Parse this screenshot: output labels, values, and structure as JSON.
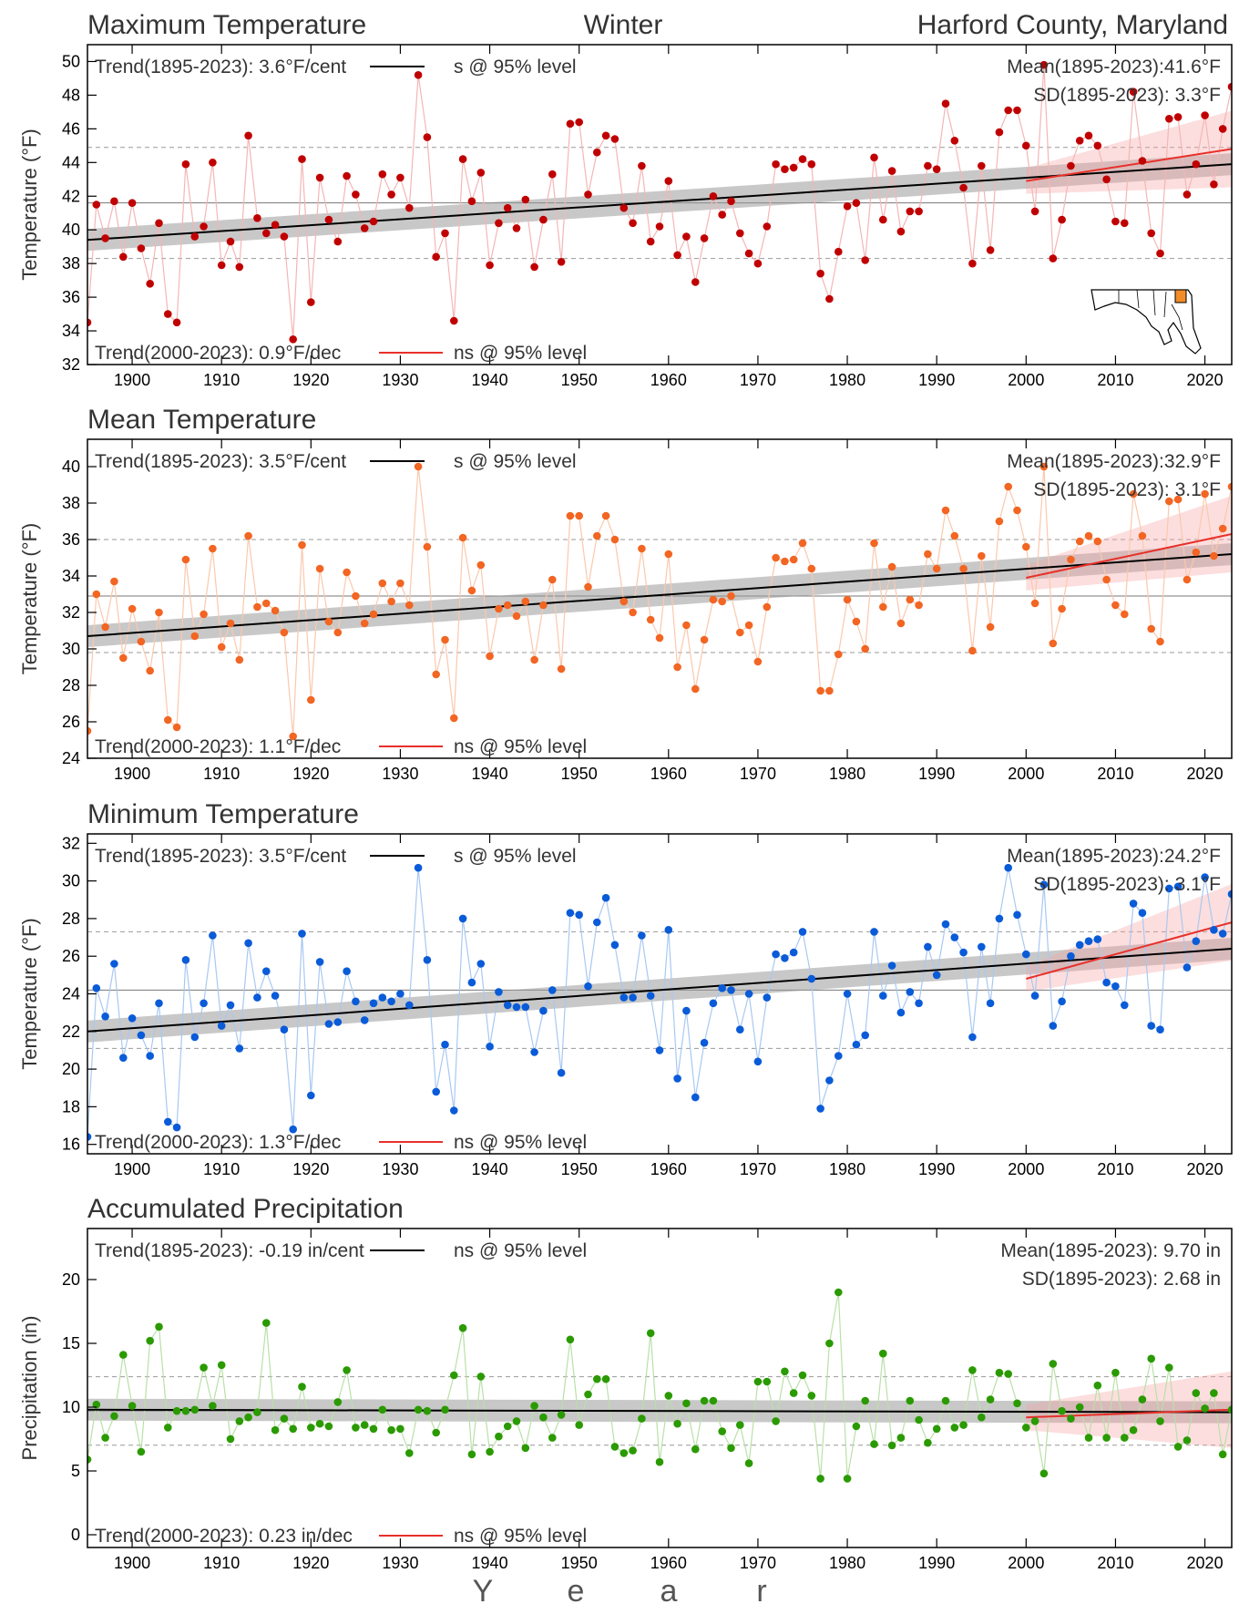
{
  "header": {
    "region_label": "Winter",
    "location_label": "Harford County, Maryland"
  },
  "xaxis": {
    "label_letters": [
      "Y",
      "e",
      "a",
      "r"
    ],
    "ticks": [
      1900,
      1910,
      1920,
      1930,
      1940,
      1950,
      1960,
      1970,
      1980,
      1990,
      2000,
      2010,
      2020
    ],
    "range": [
      1895,
      2023
    ]
  },
  "map_inset": {
    "icon": "maryland-map-icon",
    "highlight_color": "#f28c28"
  },
  "chart_data": [
    {
      "type": "scatter",
      "title": "Maximum Temperature",
      "ylabel": "Temperature (°F)",
      "ylim": [
        32,
        51
      ],
      "yticks": [
        32,
        34,
        36,
        38,
        40,
        42,
        44,
        46,
        48,
        50
      ],
      "point_color": "#c00000",
      "line_color": "#f4b6b6",
      "trend_long_text": "Trend(1895-2023):  3.6°F/cent",
      "trend_long_sig": "s @ 95% level",
      "trend_recent_text": "Trend(2000-2023):  0.9°F/dec",
      "trend_recent_sig": "ns @ 95% level",
      "mean_text": "Mean(1895-2023):41.6°F",
      "sd_text": "SD(1895-2023): 3.3°F",
      "mean": 41.6,
      "sd": 3.3,
      "trend_long": [
        39.4,
        43.9
      ],
      "trend_recent": [
        42.9,
        44.8
      ],
      "x_start": 1895,
      "values": [
        34.5,
        41.5,
        39.5,
        41.7,
        38.4,
        41.6,
        38.9,
        36.8,
        40.4,
        35.0,
        34.5,
        43.9,
        39.6,
        40.2,
        44.0,
        37.9,
        39.3,
        37.8,
        45.6,
        40.7,
        39.8,
        40.3,
        39.6,
        33.5,
        44.2,
        35.7,
        43.1,
        40.6,
        39.3,
        43.2,
        42.1,
        40.1,
        40.5,
        43.3,
        42.1,
        43.1,
        41.3,
        49.2,
        45.5,
        38.4,
        39.8,
        34.6,
        44.2,
        41.7,
        43.4,
        37.9,
        40.4,
        41.3,
        40.1,
        41.8,
        37.8,
        40.6,
        43.3,
        38.1,
        46.3,
        46.4,
        42.1,
        44.6,
        45.6,
        45.4,
        41.3,
        40.4,
        43.8,
        39.3,
        40.2,
        42.9,
        38.5,
        39.6,
        36.9,
        39.5,
        42.0,
        40.9,
        41.7,
        39.8,
        38.6,
        38.0,
        40.2,
        43.9,
        43.6,
        43.7,
        44.2,
        43.9,
        37.4,
        35.9,
        38.7,
        41.4,
        41.6,
        38.2,
        44.3,
        40.6,
        43.5,
        39.9,
        41.1,
        41.1,
        43.8,
        43.6,
        47.5,
        45.3,
        42.5,
        38.0,
        43.8,
        38.8,
        45.8,
        47.1,
        47.1,
        45.0,
        41.1,
        49.8,
        38.3,
        40.6,
        43.8,
        45.3,
        45.6,
        45.0,
        43.0,
        40.5,
        40.4,
        48.2,
        44.1,
        39.8,
        38.6,
        46.6,
        46.7,
        42.1,
        43.9,
        46.8,
        42.7,
        46.0,
        48.5
      ]
    },
    {
      "type": "scatter",
      "title": "Mean Temperature",
      "ylabel": "Temperature (°F)",
      "ylim": [
        24,
        41.5
      ],
      "yticks": [
        24,
        26,
        28,
        30,
        32,
        34,
        36,
        38,
        40
      ],
      "point_color": "#f26522",
      "line_color": "#fbc8ad",
      "trend_long_text": "Trend(1895-2023):  3.5°F/cent",
      "trend_long_sig": "s @ 95% level",
      "trend_recent_text": "Trend(2000-2023):  1.1°F/dec",
      "trend_recent_sig": "ns @ 95% level",
      "mean_text": "Mean(1895-2023):32.9°F",
      "sd_text": "SD(1895-2023): 3.1°F",
      "mean": 32.9,
      "sd": 3.1,
      "trend_long": [
        30.7,
        35.2
      ],
      "trend_recent": [
        33.9,
        36.3
      ],
      "x_start": 1895,
      "values": [
        25.5,
        33.0,
        31.2,
        33.7,
        29.5,
        32.2,
        30.4,
        28.8,
        32.0,
        26.1,
        25.7,
        34.9,
        30.7,
        31.9,
        35.5,
        30.1,
        31.4,
        29.4,
        36.2,
        32.3,
        32.5,
        32.1,
        30.9,
        25.2,
        35.7,
        27.2,
        34.4,
        31.5,
        30.9,
        34.2,
        32.9,
        31.4,
        31.9,
        33.6,
        32.6,
        33.6,
        32.4,
        40.0,
        35.6,
        28.6,
        30.5,
        26.2,
        36.1,
        33.2,
        34.6,
        29.6,
        32.2,
        32.4,
        31.8,
        32.6,
        29.4,
        32.4,
        33.8,
        28.9,
        37.3,
        37.3,
        33.4,
        36.2,
        37.3,
        36.0,
        32.6,
        32.0,
        35.5,
        31.6,
        30.6,
        35.2,
        29.0,
        31.3,
        27.8,
        30.5,
        32.7,
        32.6,
        32.9,
        30.9,
        31.3,
        29.3,
        32.3,
        35.0,
        34.8,
        34.9,
        35.8,
        34.4,
        27.7,
        27.7,
        29.7,
        32.7,
        31.5,
        30.0,
        35.8,
        32.3,
        34.5,
        31.4,
        32.7,
        32.4,
        35.2,
        34.4,
        37.6,
        36.2,
        34.4,
        29.9,
        35.1,
        31.2,
        37.0,
        38.9,
        37.6,
        35.6,
        32.5,
        40.0,
        30.3,
        32.2,
        34.9,
        35.9,
        36.2,
        35.9,
        33.8,
        32.4,
        31.9,
        38.5,
        36.2,
        31.1,
        30.4,
        38.1,
        38.2,
        33.8,
        35.3,
        38.5,
        35.1,
        36.6,
        38.9
      ]
    },
    {
      "type": "scatter",
      "title": "Minimum Temperature",
      "ylabel": "Temperature (°F)",
      "ylim": [
        15.5,
        32.5
      ],
      "yticks": [
        16,
        18,
        20,
        22,
        24,
        26,
        28,
        30,
        32
      ],
      "point_color": "#0a5bd8",
      "line_color": "#a9c8f2",
      "trend_long_text": "Trend(1895-2023):  3.5°F/cent",
      "trend_long_sig": "s @ 95% level",
      "trend_recent_text": "Trend(2000-2023):  1.3°F/dec",
      "trend_recent_sig": "ns @ 95% level",
      "mean_text": "Mean(1895-2023):24.2°F",
      "sd_text": "SD(1895-2023): 3.1°F",
      "mean": 24.2,
      "sd": 3.1,
      "trend_long": [
        22.0,
        26.4
      ],
      "trend_recent": [
        24.8,
        27.8
      ],
      "x_start": 1895,
      "values": [
        16.4,
        24.3,
        22.8,
        25.6,
        20.6,
        22.7,
        21.8,
        20.7,
        23.5,
        17.2,
        16.9,
        25.8,
        21.7,
        23.5,
        27.1,
        22.3,
        23.4,
        21.1,
        26.7,
        23.8,
        25.2,
        23.9,
        22.1,
        16.8,
        27.2,
        18.6,
        25.7,
        22.4,
        22.5,
        25.2,
        23.6,
        22.6,
        23.5,
        23.8,
        23.6,
        24.0,
        23.4,
        30.7,
        25.8,
        18.8,
        21.3,
        17.8,
        28.0,
        24.6,
        25.6,
        21.2,
        24.1,
        23.4,
        23.3,
        23.3,
        20.9,
        23.1,
        24.2,
        19.8,
        28.3,
        28.2,
        24.4,
        27.8,
        29.1,
        26.6,
        23.8,
        23.8,
        27.1,
        23.9,
        21.0,
        27.4,
        19.5,
        23.1,
        18.5,
        21.4,
        23.5,
        24.3,
        24.2,
        22.1,
        24.0,
        20.4,
        23.8,
        26.1,
        25.9,
        26.2,
        27.3,
        24.8,
        17.9,
        19.4,
        20.7,
        24.0,
        21.3,
        21.8,
        27.3,
        23.9,
        25.5,
        23.0,
        24.1,
        23.5,
        26.5,
        25.0,
        27.7,
        27.0,
        26.2,
        21.7,
        26.5,
        23.5,
        28.0,
        30.7,
        28.2,
        26.1,
        23.9,
        29.8,
        22.3,
        23.6,
        26.0,
        26.6,
        26.8,
        26.9,
        24.6,
        24.4,
        23.4,
        28.8,
        28.3,
        22.3,
        22.1,
        29.6,
        29.7,
        25.4,
        26.8,
        30.2,
        27.4,
        27.2,
        29.3
      ]
    },
    {
      "type": "scatter",
      "title": "Accumulated Precipitation",
      "ylabel": "Precipitation (in)",
      "ylim": [
        -1,
        24
      ],
      "yticks": [
        0,
        5,
        10,
        15,
        20
      ],
      "point_color": "#2a9a00",
      "line_color": "#b9e0a8",
      "trend_long_text": "Trend(1895-2023): -0.19 in/cent",
      "trend_long_sig": "ns @ 95% level",
      "trend_recent_text": "Trend(2000-2023):  0.23 in/dec",
      "trend_recent_sig": "ns @ 95% level",
      "mean_text": "Mean(1895-2023): 9.70 in",
      "sd_text": "SD(1895-2023): 2.68 in",
      "mean": 9.7,
      "sd": 2.68,
      "trend_long": [
        9.8,
        9.6
      ],
      "trend_recent": [
        9.2,
        9.8
      ],
      "x_start": 1895,
      "values": [
        5.9,
        10.2,
        7.6,
        9.3,
        14.1,
        10.1,
        6.5,
        15.2,
        16.3,
        8.4,
        9.7,
        9.7,
        9.8,
        13.1,
        10.1,
        13.3,
        7.5,
        8.9,
        9.2,
        9.6,
        16.6,
        8.2,
        9.1,
        8.3,
        11.6,
        8.4,
        8.7,
        8.5,
        10.4,
        12.9,
        8.4,
        8.6,
        8.3,
        9.8,
        8.2,
        8.3,
        6.4,
        9.8,
        9.7,
        8.0,
        9.8,
        12.5,
        16.2,
        6.3,
        12.4,
        6.5,
        7.7,
        8.5,
        8.9,
        6.8,
        10.1,
        9.2,
        7.6,
        9.4,
        15.3,
        8.6,
        11.0,
        12.2,
        12.2,
        6.9,
        6.4,
        6.6,
        9.1,
        15.8,
        5.7,
        10.9,
        8.7,
        10.3,
        6.7,
        10.5,
        10.5,
        8.1,
        6.8,
        8.6,
        5.6,
        12.0,
        12.0,
        8.9,
        12.8,
        11.1,
        12.5,
        10.9,
        4.4,
        15.0,
        19.0,
        4.4,
        8.5,
        10.5,
        7.1,
        14.2,
        7.0,
        7.6,
        10.5,
        9.0,
        7.2,
        8.3,
        10.5,
        8.4,
        8.6,
        12.9,
        9.2,
        10.6,
        12.7,
        12.6,
        10.3,
        8.4,
        8.9,
        4.8,
        13.4,
        9.7,
        9.1,
        10.0,
        7.6,
        11.7,
        7.6,
        12.7,
        7.6,
        8.2,
        10.6,
        13.8,
        8.9,
        13.1,
        6.9,
        7.4,
        11.1,
        9.9,
        11.1,
        6.3,
        9.8
      ]
    }
  ]
}
